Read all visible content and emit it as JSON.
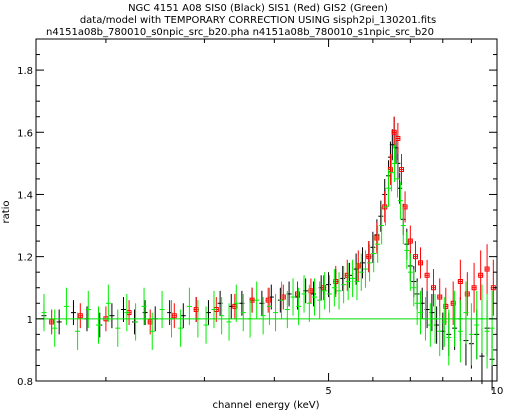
{
  "chart_data": {
    "type": "scatter",
    "title_lines": [
      "NGC 4151 A08 SIS0 (Black) SIS1 (Red) GIS2 (Green)",
      "data/model with TEMPORARY CORRECTION USING sisph2pi_130201.fits",
      "n4151a08b_780010_s0npic_src_b20.pha n4151a08b_780010_s1npic_src_b20"
    ],
    "xlabel": "channel energy (keV)",
    "ylabel": "ratio",
    "xscale": "log",
    "xlim": [
      1.5,
      10
    ],
    "ylim": [
      0.8,
      1.9
    ],
    "xticks": [
      5,
      10
    ],
    "yticks": [
      0.8,
      1,
      1.2,
      1.4,
      1.6,
      1.8
    ],
    "reference_line": {
      "y": 1.0,
      "color": "#00dd00"
    },
    "colors": {
      "sis0": "#000000",
      "sis1": "#ff0000",
      "gis2": "#00ee00"
    },
    "series": [
      {
        "color": "#000000",
        "marker": "cross",
        "x": [
          1.55,
          1.65,
          1.75,
          1.85,
          1.95,
          2.05,
          2.15,
          2.25,
          2.35,
          2.45,
          2.6,
          2.75,
          2.9,
          3.05,
          3.2,
          3.35,
          3.5,
          3.65,
          3.8,
          3.95,
          4.1,
          4.25,
          4.4,
          4.55,
          4.7,
          4.85,
          5.0,
          5.15,
          5.3,
          5.45,
          5.6,
          5.75,
          5.9,
          6.0,
          6.1,
          6.2,
          6.3,
          6.4,
          6.45,
          6.5,
          6.55,
          6.6,
          6.65,
          6.7,
          6.8,
          6.9,
          7.0,
          7.1,
          7.2,
          7.35,
          7.5,
          7.65,
          7.8,
          8.0,
          8.2,
          8.4,
          8.6,
          8.8,
          9.0,
          9.2,
          9.4,
          9.6,
          9.8
        ],
        "y": [
          1.01,
          0.99,
          1.02,
          1.0,
          0.98,
          1.01,
          1.03,
          0.99,
          1.02,
          1.0,
          1.02,
          1.01,
          1.03,
          1.02,
          1.05,
          1.04,
          1.05,
          1.06,
          1.05,
          1.07,
          1.06,
          1.08,
          1.07,
          1.09,
          1.08,
          1.1,
          1.11,
          1.12,
          1.13,
          1.14,
          1.16,
          1.18,
          1.2,
          1.23,
          1.27,
          1.33,
          1.4,
          1.46,
          1.52,
          1.56,
          1.6,
          1.55,
          1.5,
          1.42,
          1.32,
          1.24,
          1.17,
          1.12,
          1.08,
          1.05,
          1.03,
          1.02,
          0.98,
          0.96,
          0.95,
          0.97,
          1.0,
          0.93,
          0.92,
          0.95,
          0.88,
          0.97,
          0.87
        ],
        "yerr": [
          0.04,
          0.04,
          0.04,
          0.04,
          0.04,
          0.04,
          0.04,
          0.04,
          0.04,
          0.04,
          0.04,
          0.04,
          0.04,
          0.04,
          0.04,
          0.04,
          0.04,
          0.04,
          0.04,
          0.04,
          0.04,
          0.04,
          0.04,
          0.04,
          0.04,
          0.04,
          0.04,
          0.04,
          0.04,
          0.04,
          0.05,
          0.05,
          0.05,
          0.05,
          0.05,
          0.05,
          0.05,
          0.05,
          0.05,
          0.05,
          0.05,
          0.05,
          0.05,
          0.05,
          0.05,
          0.05,
          0.05,
          0.05,
          0.05,
          0.05,
          0.06,
          0.06,
          0.06,
          0.06,
          0.07,
          0.07,
          0.07,
          0.08,
          0.08,
          0.08,
          0.09,
          0.09,
          0.1
        ]
      },
      {
        "color": "#ff0000",
        "marker": "square",
        "x": [
          1.6,
          1.8,
          2.0,
          2.2,
          2.4,
          2.65,
          2.9,
          3.15,
          3.4,
          3.65,
          3.9,
          4.15,
          4.4,
          4.65,
          4.9,
          5.15,
          5.4,
          5.65,
          5.9,
          6.1,
          6.3,
          6.45,
          6.55,
          6.65,
          6.75,
          6.85,
          7.0,
          7.15,
          7.3,
          7.5,
          7.7,
          7.9,
          8.1,
          8.35,
          8.6,
          8.85,
          9.1,
          9.35,
          9.6,
          9.85
        ],
        "y": [
          0.99,
          1.01,
          1.0,
          1.02,
          0.99,
          1.01,
          1.03,
          1.03,
          1.04,
          1.06,
          1.06,
          1.07,
          1.08,
          1.09,
          1.1,
          1.12,
          1.14,
          1.17,
          1.2,
          1.26,
          1.36,
          1.48,
          1.6,
          1.58,
          1.48,
          1.36,
          1.25,
          1.2,
          1.18,
          1.14,
          1.1,
          1.07,
          1.04,
          1.05,
          1.12,
          1.08,
          1.1,
          1.14,
          1.16,
          1.1
        ],
        "yerr": [
          0.04,
          0.04,
          0.04,
          0.04,
          0.04,
          0.04,
          0.04,
          0.04,
          0.04,
          0.04,
          0.04,
          0.04,
          0.04,
          0.04,
          0.04,
          0.05,
          0.05,
          0.05,
          0.05,
          0.05,
          0.05,
          0.05,
          0.05,
          0.05,
          0.05,
          0.05,
          0.05,
          0.05,
          0.05,
          0.05,
          0.06,
          0.06,
          0.06,
          0.07,
          0.07,
          0.07,
          0.08,
          0.08,
          0.08,
          0.09
        ]
      },
      {
        "color": "#00ee00",
        "marker": "cross",
        "x": [
          1.55,
          1.62,
          1.7,
          1.78,
          1.86,
          1.94,
          2.02,
          2.1,
          2.18,
          2.26,
          2.34,
          2.42,
          2.52,
          2.62,
          2.72,
          2.82,
          2.92,
          3.02,
          3.12,
          3.22,
          3.32,
          3.42,
          3.52,
          3.62,
          3.72,
          3.82,
          3.92,
          4.02,
          4.12,
          4.22,
          4.32,
          4.42,
          4.52,
          4.62,
          4.72,
          4.82,
          4.92,
          5.02,
          5.12,
          5.22,
          5.32,
          5.42,
          5.52,
          5.62,
          5.72,
          5.82,
          5.92,
          6.02,
          6.12,
          6.22,
          6.32,
          6.4,
          6.48,
          6.56,
          6.64,
          6.72,
          6.8,
          6.9,
          7.0,
          7.1,
          7.2,
          7.3,
          7.45,
          7.6,
          7.75,
          7.9,
          8.05,
          8.2,
          8.4,
          8.6,
          8.8,
          9.0,
          9.2,
          9.4,
          9.6,
          9.8
        ],
        "y": [
          1.02,
          0.97,
          1.04,
          0.96,
          1.03,
          0.98,
          1.05,
          0.97,
          1.02,
          0.99,
          1.04,
          0.96,
          1.03,
          1.0,
          0.97,
          1.04,
          1.0,
          0.98,
          1.03,
          1.01,
          0.99,
          1.05,
          1.02,
          1.0,
          1.06,
          1.01,
          1.04,
          1.02,
          1.06,
          1.03,
          1.07,
          1.04,
          1.08,
          1.05,
          1.07,
          1.06,
          1.09,
          1.08,
          1.1,
          1.09,
          1.11,
          1.12,
          1.13,
          1.12,
          1.15,
          1.16,
          1.18,
          1.21,
          1.24,
          1.3,
          1.36,
          1.42,
          1.47,
          1.5,
          1.45,
          1.38,
          1.3,
          1.22,
          1.15,
          1.1,
          1.05,
          1.02,
          1.0,
          0.98,
          1.0,
          0.96,
          0.99,
          0.94,
          1.0,
          0.96,
          1.02,
          0.95,
          0.98,
          1.0,
          0.96,
          0.97
        ],
        "yerr": [
          0.06,
          0.06,
          0.06,
          0.06,
          0.06,
          0.06,
          0.06,
          0.06,
          0.06,
          0.06,
          0.06,
          0.06,
          0.06,
          0.06,
          0.06,
          0.06,
          0.06,
          0.06,
          0.06,
          0.06,
          0.06,
          0.06,
          0.06,
          0.06,
          0.06,
          0.06,
          0.06,
          0.06,
          0.06,
          0.06,
          0.06,
          0.06,
          0.06,
          0.06,
          0.06,
          0.06,
          0.06,
          0.06,
          0.06,
          0.06,
          0.06,
          0.06,
          0.06,
          0.06,
          0.06,
          0.06,
          0.06,
          0.06,
          0.06,
          0.06,
          0.06,
          0.06,
          0.06,
          0.06,
          0.06,
          0.06,
          0.06,
          0.06,
          0.06,
          0.06,
          0.07,
          0.07,
          0.07,
          0.07,
          0.08,
          0.08,
          0.08,
          0.09,
          0.09,
          0.1,
          0.1,
          0.1,
          0.11,
          0.11,
          0.12,
          0.12
        ]
      }
    ]
  }
}
